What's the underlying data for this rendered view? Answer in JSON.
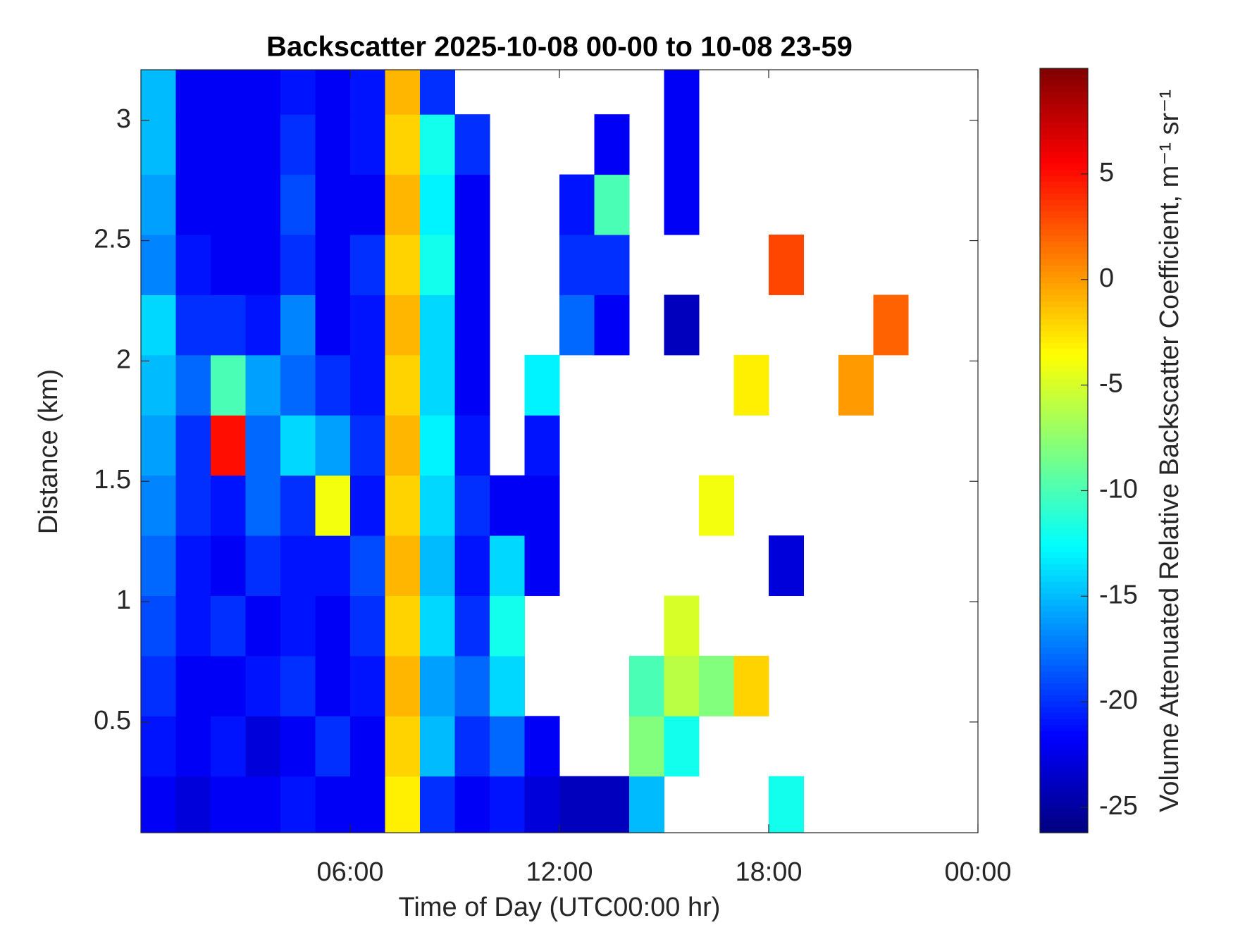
{
  "chart_data": {
    "type": "heatmap",
    "title": "Backscatter 2025-10-08 00-00 to 10-08 23-59",
    "x_label": "Time of Day (UTC00:00 hr)",
    "y_label": "Distance (km)",
    "colorbar_label": "Volume Attenuated Relative Backscatter Coefficient, m⁻¹ sr⁻¹",
    "colormap": "jet",
    "x": [
      0.5,
      1.5,
      2.5,
      3.5,
      4.5,
      5.5,
      6.5,
      7.5,
      8.5,
      9.5,
      10.5,
      11.5,
      12.5,
      13.5,
      14.5,
      15.5,
      16.5,
      17.5,
      18.5,
      19.5,
      20.5,
      21.5,
      22.5,
      23.5
    ],
    "y": [
      0.15,
      0.4,
      0.65,
      0.9,
      1.15,
      1.4,
      1.65,
      1.9,
      2.15,
      2.4,
      2.65,
      2.9,
      3.15
    ],
    "values": [
      [
        -22,
        -23,
        -22,
        -22,
        -21,
        -22,
        -22,
        -3,
        -20,
        -22,
        -21,
        -23,
        -24,
        -24,
        -15,
        null,
        null,
        null,
        -12,
        null,
        null,
        null,
        null,
        null
      ],
      [
        -21,
        -22,
        -21,
        -23,
        -22,
        -20,
        -22,
        -2,
        -15,
        -20,
        -18,
        -22,
        null,
        null,
        -8,
        -12,
        null,
        null,
        null,
        null,
        null,
        null,
        null,
        null
      ],
      [
        -20,
        -22,
        -22,
        -21,
        -20,
        -22,
        -21,
        -1,
        -16,
        -18,
        -14,
        null,
        null,
        null,
        -10,
        -6,
        -8,
        -2,
        null,
        null,
        null,
        null,
        null,
        null
      ],
      [
        -19,
        -21,
        -20,
        -22,
        -21,
        -22,
        -20,
        -2,
        -14,
        -20,
        -12,
        null,
        null,
        null,
        null,
        -5,
        null,
        null,
        null,
        null,
        null,
        null,
        null,
        null
      ],
      [
        -18,
        -21,
        -22,
        -20,
        -21,
        -21,
        -19,
        -1,
        -15,
        -21,
        -14,
        -22,
        null,
        null,
        null,
        null,
        null,
        null,
        -23,
        null,
        null,
        null,
        null,
        null
      ],
      [
        -17,
        -20,
        -21,
        -18,
        -20,
        -4,
        -21,
        -2,
        -14,
        -20,
        -22,
        -22,
        null,
        null,
        null,
        null,
        -4,
        null,
        null,
        null,
        null,
        null,
        null,
        null
      ],
      [
        -16,
        -20,
        5,
        -18,
        -14,
        -16,
        -20,
        -1,
        -13,
        -21,
        null,
        -21,
        null,
        null,
        null,
        null,
        null,
        null,
        null,
        null,
        null,
        null,
        null,
        null
      ],
      [
        -15,
        -18,
        -10,
        -16,
        -18,
        -20,
        -21,
        -2,
        -14,
        -22,
        null,
        -13,
        null,
        null,
        null,
        null,
        null,
        -3,
        null,
        null,
        0,
        null,
        null,
        null
      ],
      [
        -14,
        -20,
        -20,
        -21,
        -17,
        -22,
        -21,
        -1,
        -14,
        -22,
        null,
        null,
        -18,
        -22,
        null,
        -24,
        null,
        null,
        null,
        null,
        null,
        2,
        null,
        null
      ],
      [
        -17,
        -21,
        -22,
        -22,
        -20,
        -22,
        -20,
        -2,
        -12,
        -22,
        null,
        null,
        -20,
        -20,
        null,
        null,
        null,
        null,
        3,
        null,
        null,
        null,
        null,
        null
      ],
      [
        -16,
        -22,
        -22,
        -22,
        -19,
        -22,
        -22,
        -1,
        -13,
        -22,
        null,
        null,
        -21,
        -10,
        null,
        -22,
        null,
        null,
        null,
        null,
        null,
        null,
        null,
        null
      ],
      [
        -15,
        -22,
        -22,
        -22,
        -20,
        -22,
        -21,
        -2,
        -12,
        -20,
        null,
        null,
        null,
        -22,
        null,
        -22,
        null,
        null,
        null,
        null,
        null,
        null,
        null,
        null
      ],
      [
        -15,
        -22,
        -22,
        -22,
        -21,
        -22,
        -21,
        -1,
        -20,
        null,
        null,
        null,
        null,
        null,
        null,
        -22,
        null,
        null,
        null,
        null,
        null,
        null,
        null,
        null
      ]
    ],
    "xlim": [
      0,
      24
    ],
    "xticks": [
      {
        "value": 6,
        "label": "06:00"
      },
      {
        "value": 12,
        "label": "12:00"
      },
      {
        "value": 18,
        "label": "18:00"
      },
      {
        "value": 24,
        "label": "00:00"
      }
    ],
    "ylim": [
      0.04,
      3.21
    ],
    "yticks": [
      0.5,
      1,
      1.5,
      2,
      2.5,
      3
    ],
    "clim": [
      -26.2,
      10
    ],
    "cticks": [
      -25,
      -20,
      -15,
      -10,
      -5,
      0,
      5
    ]
  }
}
